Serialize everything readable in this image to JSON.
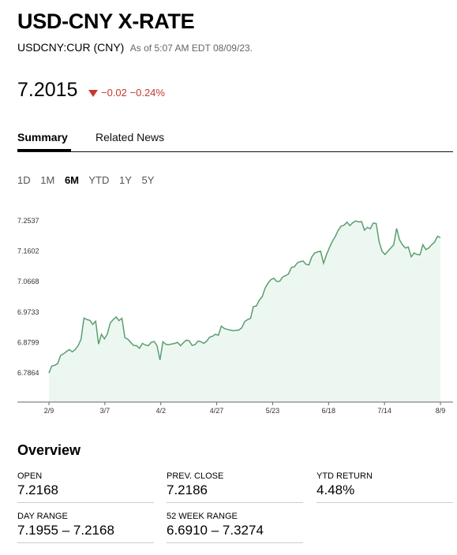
{
  "header": {
    "title": "USD-CNY X-RATE",
    "ticker": "USDCNY:CUR (CNY)",
    "as_of": "As of 5:07 AM EDT 08/09/23."
  },
  "quote": {
    "price": "7.2015",
    "change": "−0.02 −0.24%",
    "direction": "down",
    "change_color": "#c43a31"
  },
  "tabs": [
    {
      "label": "Summary",
      "active": true
    },
    {
      "label": "Related News",
      "active": false
    }
  ],
  "ranges": [
    {
      "label": "1D",
      "active": false
    },
    {
      "label": "1M",
      "active": false
    },
    {
      "label": "6M",
      "active": true
    },
    {
      "label": "YTD",
      "active": false
    },
    {
      "label": "1Y",
      "active": false
    },
    {
      "label": "5Y",
      "active": false
    }
  ],
  "chart_data": {
    "type": "area",
    "line_color": "#5a9e6f",
    "fill_color": "#eaf6ee",
    "y_ticks": [
      "7.2537",
      "7.1602",
      "7.0668",
      "6.9733",
      "6.8799",
      "6.7864"
    ],
    "x_ticks": [
      "2/9",
      "3/7",
      "4/2",
      "4/27",
      "5/23",
      "6/18",
      "7/14",
      "8/9"
    ],
    "ylim": [
      6.7864,
      7.2537
    ],
    "grid": false,
    "values": [
      6.786,
      6.808,
      6.81,
      6.815,
      6.84,
      6.845,
      6.852,
      6.858,
      6.851,
      6.858,
      6.87,
      6.89,
      6.955,
      6.95,
      6.948,
      6.935,
      6.945,
      6.875,
      6.905,
      6.891,
      6.906,
      6.94,
      6.95,
      6.958,
      6.947,
      6.954,
      6.895,
      6.89,
      6.88,
      6.871,
      6.87,
      6.862,
      6.877,
      6.872,
      6.87,
      6.88,
      6.883,
      6.87,
      6.826,
      6.882,
      6.874,
      6.873,
      6.875,
      6.877,
      6.88,
      6.87,
      6.879,
      6.887,
      6.885,
      6.871,
      6.873,
      6.884,
      6.882,
      6.877,
      6.884,
      6.896,
      6.899,
      6.905,
      6.902,
      6.93,
      6.923,
      6.92,
      6.918,
      6.916,
      6.917,
      6.918,
      6.925,
      6.944,
      6.95,
      6.954,
      6.99,
      6.992,
      7.01,
      7.02,
      7.047,
      7.062,
      7.073,
      7.077,
      7.067,
      7.068,
      7.081,
      7.085,
      7.09,
      7.11,
      7.112,
      7.124,
      7.128,
      7.13,
      7.12,
      7.118,
      7.143,
      7.155,
      7.158,
      7.16,
      7.123,
      7.149,
      7.171,
      7.19,
      7.205,
      7.224,
      7.237,
      7.24,
      7.249,
      7.239,
      7.248,
      7.253,
      7.25,
      7.251,
      7.225,
      7.233,
      7.229,
      7.247,
      7.245,
      7.19,
      7.16,
      7.15,
      7.16,
      7.17,
      7.18,
      7.23,
      7.195,
      7.18,
      7.17,
      7.173,
      7.143,
      7.155,
      7.15,
      7.149,
      7.18,
      7.165,
      7.17,
      7.18,
      7.188,
      7.206,
      7.202
    ]
  },
  "overview": {
    "title": "Overview",
    "stats": [
      {
        "label": "OPEN",
        "value": "7.2168"
      },
      {
        "label": "PREV. CLOSE",
        "value": "7.2186"
      },
      {
        "label": "YTD RETURN",
        "value": "4.48%"
      },
      {
        "label": "DAY RANGE",
        "value": "7.1955 – 7.2168"
      },
      {
        "label": "52 WEEK RANGE",
        "value": "6.6910 – 7.3274"
      }
    ]
  }
}
